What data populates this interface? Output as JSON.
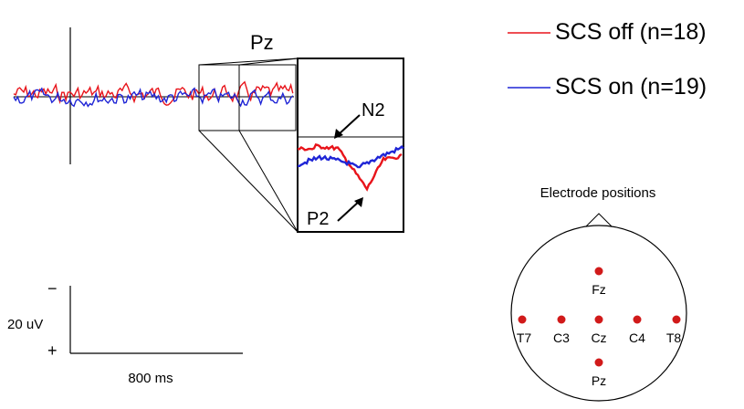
{
  "erp": {
    "electrode_label": "Pz",
    "component_n2": "N2",
    "component_p2": "P2"
  },
  "legend": [
    {
      "label": "SCS off (n=18)",
      "color": "#e8141b"
    },
    {
      "label": "SCS on (n=19)",
      "color": "#1f25d6"
    }
  ],
  "scale_bar": {
    "amplitude": "20 uV",
    "minus": "−",
    "plus": "+",
    "time": "800 ms"
  },
  "head_map": {
    "title": "Electrode positions",
    "electrodes": [
      "Fz",
      "T7",
      "C3",
      "Cz",
      "C4",
      "T8",
      "Pz"
    ],
    "dot_color": "#d11a1a"
  }
}
